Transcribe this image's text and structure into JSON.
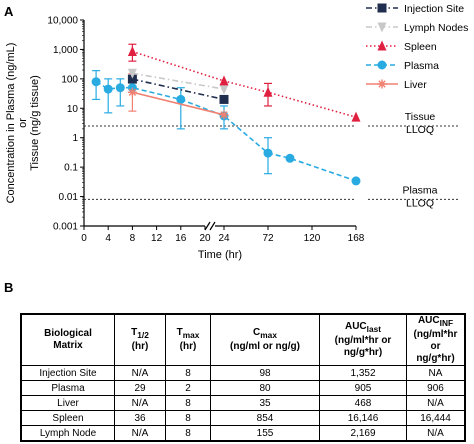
{
  "panels": {
    "a": "A",
    "b": "B"
  },
  "chart_data": {
    "type": "line",
    "xlabel": "Time (hr)",
    "ylabel_lines": [
      "Concentration in Plasma (ng/mL)",
      "or",
      "Tissue (ng/g tissue)"
    ],
    "y_scale": "log",
    "ylim": [
      0.001,
      10000
    ],
    "y_ticks": [
      "10,000",
      "1,000",
      "100",
      "10",
      "1",
      "0.1",
      "0.01",
      "0.001"
    ],
    "x_axis_break": "between 20 and 24",
    "x_ticks": [
      "0",
      "4",
      "8",
      "12",
      "16",
      "20",
      "24",
      "72",
      "120",
      "168"
    ],
    "lloq_lines": [
      {
        "label_lines": [
          "Tissue",
          "LLOQ"
        ],
        "y": 2.5
      },
      {
        "label_lines": [
          "Plasma",
          "LLOQ"
        ],
        "y": 0.008
      }
    ],
    "series": [
      {
        "name": "Injection Site",
        "color": "#1f2d4e",
        "marker": "square",
        "line": "dash-dot",
        "x": [
          8,
          24
        ],
        "y": [
          98,
          20
        ]
      },
      {
        "name": "Lymph Nodes",
        "color": "#c8c8c8",
        "marker": "triangle-down",
        "line": "dash-dot",
        "x": [
          8,
          24
        ],
        "y": [
          155,
          45
        ]
      },
      {
        "name": "Spleen",
        "color": "#e02040",
        "marker": "triangle-up",
        "line": "dotted",
        "x": [
          8,
          24,
          72,
          168
        ],
        "y": [
          850,
          85,
          35,
          5
        ]
      },
      {
        "name": "Plasma",
        "color": "#29abe2",
        "marker": "circle",
        "line": "dashed",
        "x": [
          2,
          4,
          6,
          8,
          16,
          24,
          72,
          96,
          168
        ],
        "y": [
          80,
          45,
          50,
          50,
          20,
          5.5,
          0.3,
          0.2,
          0.034
        ]
      },
      {
        "name": "Liver",
        "color": "#f08070",
        "marker": "star",
        "line": "solid",
        "x": [
          8,
          24
        ],
        "y": [
          35,
          6
        ]
      }
    ]
  },
  "table": {
    "headers": [
      "Biological Matrix",
      "T1/2 (hr)",
      "Tmax (hr)",
      "Cmax (ng/ml or ng/g)",
      "AUClast (ng/ml*hr or ng/g*hr)",
      "AUCINF (ng/ml*hr or ng/g*hr)"
    ],
    "h_biological": "Biological",
    "h_matrix": "Matrix",
    "h_t": "T",
    "h_t_sub": "1/2",
    "h_tmax": "T",
    "h_tmax_sub": "max",
    "h_hr": "(hr)",
    "h_cmax": "C",
    "h_cmax_sub": "max",
    "h_cmax_unit": "(ng/ml or ng/g)",
    "h_auc": "AUC",
    "h_auclast_sub": "last",
    "h_aucinf_sub": "INF",
    "h_auc_unit1": "(ng/ml*hr or",
    "h_auc_unit2": "ng/g*hr)",
    "rows": [
      [
        "Injection Site",
        "N/A",
        "8",
        "98",
        "1,352",
        "NA"
      ],
      [
        "Plasma",
        "29",
        "2",
        "80",
        "905",
        "906"
      ],
      [
        "Liver",
        "N/A",
        "8",
        "35",
        "468",
        "N/A"
      ],
      [
        "Spleen",
        "36",
        "8",
        "854",
        "16,146",
        "16,444"
      ],
      [
        "Lymph Node",
        "N/A",
        "8",
        "155",
        "2,169",
        "N/A"
      ]
    ]
  }
}
